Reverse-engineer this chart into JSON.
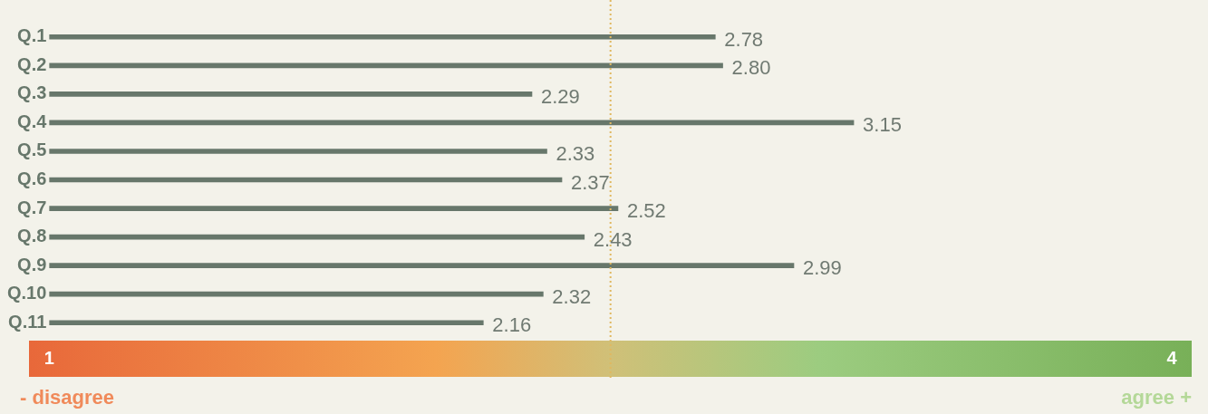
{
  "chart_data": {
    "type": "bar",
    "orientation": "horizontal",
    "categories": [
      "Q.1",
      "Q.2",
      "Q.3",
      "Q.4",
      "Q.5",
      "Q.6",
      "Q.7",
      "Q.8",
      "Q.9",
      "Q.10",
      "Q.11"
    ],
    "values": [
      2.78,
      2.8,
      2.29,
      3.15,
      2.33,
      2.37,
      2.52,
      2.43,
      2.99,
      2.32,
      2.16
    ],
    "value_labels": [
      "2.78",
      "2.80",
      "2.29",
      "3.15",
      "2.33",
      "2.37",
      "2.52",
      "2.43",
      "2.99",
      "2.32",
      "2.16"
    ],
    "color": "#67776b",
    "xlim": [
      1,
      4
    ],
    "xticks": [
      1,
      4
    ],
    "ref_lines": [
      {
        "axis": "x",
        "value": 2.5,
        "color": "#e0b860",
        "line_style": "dotted"
      }
    ],
    "grid": false,
    "legend": false,
    "annotations": [
      "- disagree",
      "agree +"
    ]
  }
}
